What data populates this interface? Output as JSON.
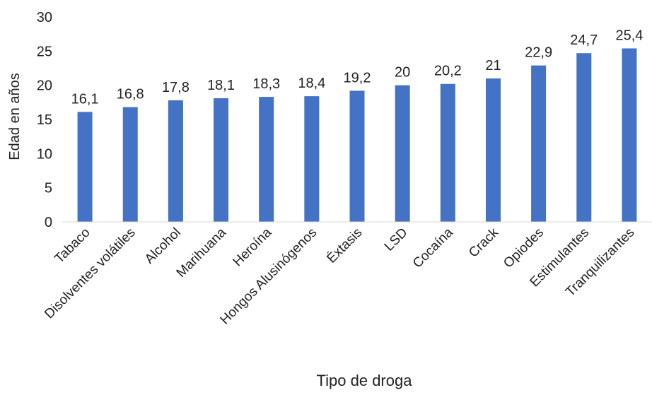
{
  "chart_data": {
    "type": "bar",
    "title": "",
    "xlabel": "Tipo de droga",
    "ylabel": "Edad en años",
    "ylim": [
      0,
      30
    ],
    "yticks": [
      0,
      5,
      10,
      15,
      20,
      25,
      30
    ],
    "grid": false,
    "legend": "none",
    "bar_color": "#4472c4",
    "categories": [
      "Tabaco",
      "Disolventes volátiles",
      "Alcohol",
      "Marihuana",
      "Heroína",
      "Hongos Alusinógenos",
      "Éxtasis",
      "LSD",
      "Cocaína",
      "Crack",
      "Opiodes",
      "Estimulantes",
      "Tranquilizantes"
    ],
    "values": [
      16.1,
      16.8,
      17.8,
      18.1,
      18.3,
      18.4,
      19.2,
      20,
      20.2,
      21,
      22.9,
      24.7,
      25.4
    ],
    "value_labels": [
      "16,1",
      "16,8",
      "17,8",
      "18,1",
      "18,3",
      "18,4",
      "19,2",
      "20",
      "20,2",
      "21",
      "22,9",
      "24,7",
      "25,4"
    ]
  }
}
